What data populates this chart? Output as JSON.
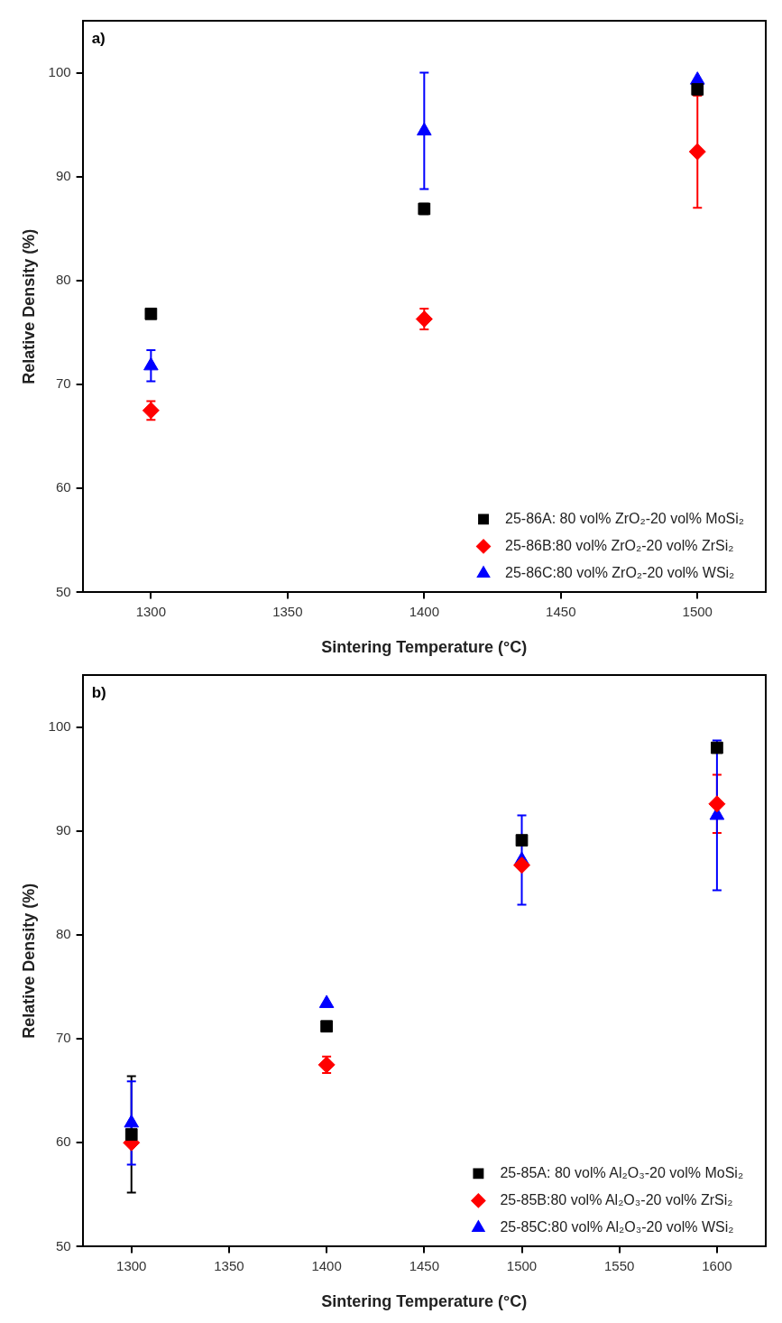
{
  "chart_data": [
    {
      "type": "scatter",
      "xlabel": "Sintering Temperature (°C)",
      "ylabel": "Relative Density (%)",
      "annotations": [
        "a)"
      ],
      "x": [
        1300,
        1400,
        1500
      ],
      "xlim": [
        1275,
        1525
      ],
      "xticks": [
        1300,
        1350,
        1400,
        1450,
        1500
      ],
      "ylim": [
        50,
        105
      ],
      "yticks": [
        50,
        60,
        70,
        80,
        90,
        100
      ],
      "legend": "bottom right",
      "series": [
        {
          "name": "25-86A: 80 vol% ZrO₂-20 vol% MoSi₂",
          "color": "#000000",
          "marker": "square",
          "values": [
            76.8,
            86.9,
            98.4
          ],
          "errors": [
            null,
            0.5,
            null
          ]
        },
        {
          "name": "25-86B:80 vol% ZrO₂-20 vol% ZrSi₂",
          "color": "#ff0000",
          "marker": "diamond",
          "values": [
            67.5,
            76.3,
            92.4
          ],
          "errors": [
            0.9,
            1,
            5.4
          ]
        },
        {
          "name": "25-86C:80 vol% ZrO₂-20 vol% WSi₂",
          "color": "#0000ff",
          "marker": "triangle",
          "values": [
            71.8,
            94.4,
            99.3
          ],
          "errors": [
            1.5,
            5.6,
            null
          ]
        }
      ]
    },
    {
      "type": "scatter",
      "xlabel": "Sintering Temperature (°C)",
      "ylabel": "Relative Density (%)",
      "annotations": [
        "b)"
      ],
      "x": [
        1300,
        1400,
        1500,
        1600
      ],
      "xlim": [
        1275,
        1625
      ],
      "xticks": [
        1300,
        1350,
        1400,
        1450,
        1500,
        1550,
        1600
      ],
      "ylim": [
        50,
        105
      ],
      "yticks": [
        50,
        60,
        70,
        80,
        90,
        100
      ],
      "legend": "bottom right",
      "series": [
        {
          "name": "25-85A: 80 vol% Al₂O₃-20 vol% MoSi₂",
          "color": "#000000",
          "marker": "square",
          "values": [
            60.8,
            71.2,
            89.1,
            98.0
          ],
          "errors": [
            5.6,
            null,
            null,
            null
          ]
        },
        {
          "name": "25-85B:80 vol% Al₂O₃-20 vol% ZrSi₂",
          "color": "#ff0000",
          "marker": "diamond",
          "values": [
            60.0,
            67.5,
            86.7,
            92.6
          ],
          "errors": [
            null,
            0.8,
            null,
            2.8
          ]
        },
        {
          "name": "25-85C:80 vol% Al₂O₃-20 vol% WSi₂",
          "color": "#0000ff",
          "marker": "triangle",
          "values": [
            61.9,
            73.4,
            87.2,
            91.5
          ],
          "errors": [
            4,
            null,
            4.3,
            7.2
          ]
        }
      ]
    }
  ]
}
